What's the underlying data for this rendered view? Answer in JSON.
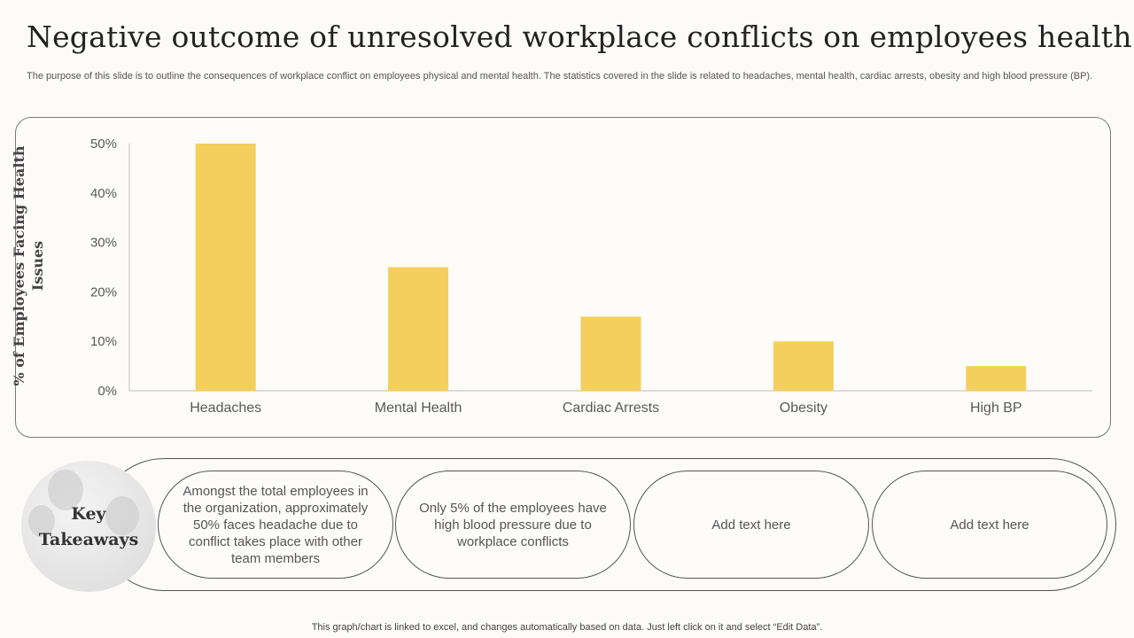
{
  "header": {
    "title": "Negative outcome of unresolved workplace conflicts on employees health",
    "subtitle": "The purpose of this slide is to outline the consequences of workplace conflict on employees physical and mental health. The statistics covered in the slide is related to headaches, mental health, cardiac arrests, obesity and high blood pressure (BP)."
  },
  "chart_data": {
    "type": "bar",
    "title": "",
    "xlabel": "",
    "ylabel": "% of Employees Facing Health Issues",
    "categories": [
      "Headaches",
      "Mental Health",
      "Cardiac Arrests",
      "Obesity",
      "High BP"
    ],
    "values": [
      50,
      25,
      15,
      10,
      5
    ],
    "ylim": [
      0,
      50
    ],
    "yticks": [
      0,
      10,
      20,
      30,
      40,
      50
    ],
    "ytick_labels": [
      "0%",
      "10%",
      "20%",
      "30%",
      "40%",
      "50%"
    ],
    "bar_color": "#f5cf5d",
    "grid": false,
    "legend": "none"
  },
  "takeaways": {
    "heading": "Key Takeaways",
    "items": [
      "Amongst the total employees in the organization, approximately 50% faces headache due to conflict takes place with other team members",
      "Only 5% of the employees have high blood pressure due to workplace conflicts",
      "Add text here",
      "Add text here"
    ]
  },
  "footer": {
    "note": "This graph/chart is linked to excel,  and changes automatically based on data. Just left click on it and select “Edit Data”."
  },
  "colors": {
    "accent": "#f5cf5d",
    "border": "#555555",
    "background": "#fcfbf8"
  }
}
